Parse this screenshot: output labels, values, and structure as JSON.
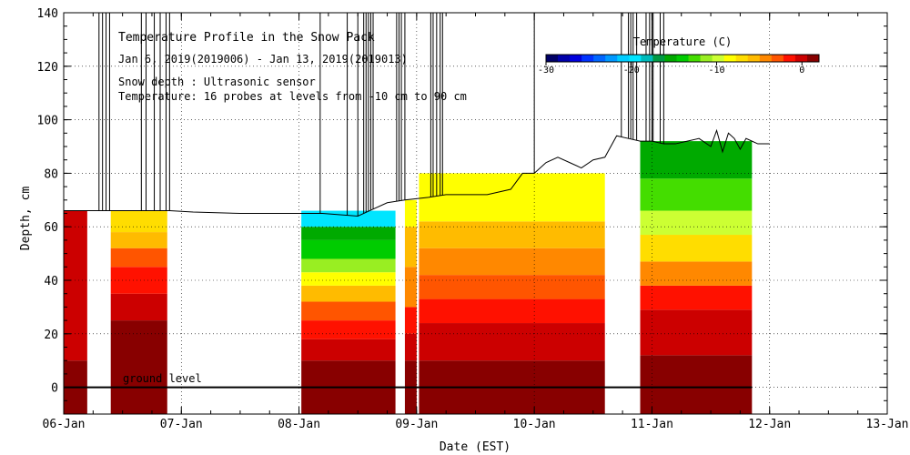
{
  "chart_data": {
    "type": "heatmap",
    "title": "Temperature Profile in the Snow Pack",
    "subtitle": "Jan  6, 2019(2019006) - Jan 13, 2019(2019013)",
    "notes": [
      "Snow depth : Ultrasonic sensor",
      "Temperature: 16 probes at levels from  -10 cm to 90 cm"
    ],
    "xlabel": "Date (EST)",
    "ylabel": "Depth, cm",
    "x_tick_labels": [
      "06-Jan",
      "07-Jan",
      "08-Jan",
      "09-Jan",
      "10-Jan",
      "11-Jan",
      "12-Jan",
      "13-Jan"
    ],
    "xlim": [
      6,
      13
    ],
    "ylim": [
      -10,
      140
    ],
    "y_ticks": [
      0,
      20,
      40,
      60,
      80,
      100,
      120,
      140
    ],
    "grid": true,
    "ground_level_label": "ground level",
    "ground_level_value": 0,
    "colorbar": {
      "title": "Temperature (C)",
      "ticks": [
        -30,
        -20,
        -10,
        0
      ],
      "tick_labels": [
        "-30",
        "-20",
        "-10",
        "0"
      ],
      "range": [
        -30,
        2
      ],
      "placement": "top-right",
      "colors": [
        "#000066",
        "#0000aa",
        "#0000dd",
        "#0033ff",
        "#0066ff",
        "#0099ff",
        "#00ccff",
        "#00e5ff",
        "#00bbbb",
        "#009944",
        "#00aa00",
        "#00cc00",
        "#44dd00",
        "#99ee22",
        "#ccff33",
        "#ffff00",
        "#ffdd00",
        "#ffbb00",
        "#ff8800",
        "#ff5500",
        "#ff1100",
        "#cc0000",
        "#880000"
      ]
    },
    "snow_depth": {
      "x": [
        6.0,
        6.2,
        6.35,
        6.6,
        6.9,
        7.1,
        7.5,
        7.8,
        8.0,
        8.2,
        8.35,
        8.5,
        8.6,
        8.75,
        8.9,
        9.1,
        9.25,
        9.4,
        9.6,
        9.8,
        9.9,
        10.0,
        10.1,
        10.2,
        10.3,
        10.4,
        10.5,
        10.6,
        10.7,
        10.8,
        10.9,
        11.0,
        11.1,
        11.2,
        11.3,
        11.4,
        11.5,
        11.55,
        11.6,
        11.65,
        11.7,
        11.75,
        11.8,
        11.85,
        11.9,
        11.95,
        12.0
      ],
      "y": [
        66,
        66,
        66,
        66,
        66,
        65.5,
        65,
        65,
        65,
        65,
        64.5,
        64,
        66,
        69,
        70,
        71,
        72,
        72,
        72,
        74,
        80,
        80,
        84,
        86,
        84,
        82,
        85,
        86,
        94,
        93,
        92,
        92,
        91,
        91,
        92,
        93,
        90,
        96,
        88,
        95,
        93,
        89,
        93,
        92,
        91,
        91,
        91
      ]
    },
    "spikes": [
      6.3,
      6.33,
      6.36,
      6.39,
      6.66,
      6.7,
      6.77,
      6.82,
      6.87,
      6.9,
      8.18,
      8.41,
      8.5,
      8.55,
      8.57,
      8.59,
      8.61,
      8.63,
      8.83,
      8.85,
      8.87,
      8.9,
      9.12,
      9.14,
      9.17,
      9.2,
      9.22,
      10.0,
      10.74,
      10.8,
      10.82,
      10.84,
      10.87,
      10.95,
      10.98,
      11.0,
      11.01,
      11.07,
      11.1
    ],
    "data_segments": [
      {
        "x": [
          6.0,
          6.2
        ],
        "top": 66,
        "bands": [
          {
            "to": 10,
            "t": 1.5
          },
          {
            "to": 66,
            "t": -0.5
          }
        ]
      },
      {
        "x": [
          6.4,
          6.88
        ],
        "top": 66,
        "bands": [
          {
            "to": 25,
            "t": 1.5
          },
          {
            "to": 35,
            "t": -0.5
          },
          {
            "to": 45,
            "t": -1.5
          },
          {
            "to": 52,
            "t": -3
          },
          {
            "to": 58,
            "t": -5
          },
          {
            "to": 66,
            "t": -7
          }
        ]
      },
      {
        "x": [
          8.02,
          8.82
        ],
        "top": 66,
        "bands": [
          {
            "to": 10,
            "t": 1.5
          },
          {
            "to": 18,
            "t": -0.5
          },
          {
            "to": 25,
            "t": -1.5
          },
          {
            "to": 32,
            "t": -3
          },
          {
            "to": 38,
            "t": -5
          },
          {
            "to": 43,
            "t": -8
          },
          {
            "to": 48,
            "t": -11
          },
          {
            "to": 55,
            "t": -14
          },
          {
            "to": 60,
            "t": -16
          },
          {
            "to": 66,
            "t": -20
          }
        ]
      },
      {
        "x": [
          8.9,
          9.0
        ],
        "top": 70,
        "bands": [
          {
            "to": 10,
            "t": 1.5
          },
          {
            "to": 20,
            "t": -0.5
          },
          {
            "to": 30,
            "t": -2
          },
          {
            "to": 45,
            "t": -4
          },
          {
            "to": 60,
            "t": -6
          },
          {
            "to": 70,
            "t": -8
          }
        ]
      },
      {
        "x": [
          9.02,
          10.6
        ],
        "top": 80,
        "bands": [
          {
            "to": 10,
            "t": 1.5
          },
          {
            "to": 24,
            "t": -0.5
          },
          {
            "to": 33,
            "t": -1.5
          },
          {
            "to": 42,
            "t": -2.5
          },
          {
            "to": 52,
            "t": -4
          },
          {
            "to": 62,
            "t": -6
          },
          {
            "to": 80,
            "t": -8
          }
        ]
      },
      {
        "x": [
          10.9,
          11.85
        ],
        "top": 92,
        "bands": [
          {
            "to": 12,
            "t": 1.5
          },
          {
            "to": 29,
            "t": -0.5
          },
          {
            "to": 38,
            "t": -2
          },
          {
            "to": 47,
            "t": -4
          },
          {
            "to": 57,
            "t": -7
          },
          {
            "to": 66,
            "t": -10
          },
          {
            "to": 78,
            "t": -13
          },
          {
            "to": 92,
            "t": -16
          }
        ]
      }
    ]
  }
}
